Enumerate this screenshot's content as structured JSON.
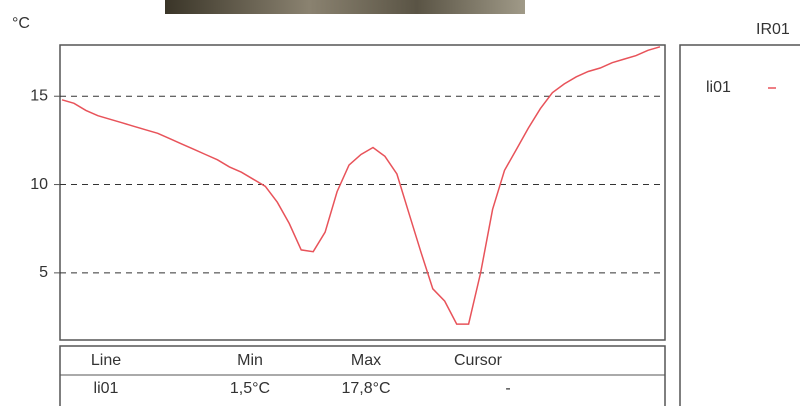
{
  "chart_data": {
    "type": "line",
    "panel_title": "IR01",
    "y_label": "°C",
    "series": [
      {
        "name": "li01",
        "color": "#e8535a",
        "values": [
          14.8,
          14.6,
          14.2,
          13.9,
          13.7,
          13.5,
          13.3,
          13.1,
          12.9,
          12.6,
          12.3,
          12.0,
          11.7,
          11.4,
          11.0,
          10.7,
          10.3,
          9.9,
          9.0,
          7.8,
          6.3,
          6.2,
          7.3,
          9.6,
          11.1,
          11.7,
          12.1,
          11.6,
          10.6,
          8.4,
          6.2,
          4.1,
          3.4,
          2.1,
          2.1,
          5.0,
          8.6,
          10.8,
          12.0,
          13.2,
          14.3,
          15.2,
          15.7,
          16.1,
          16.4,
          16.6,
          16.9,
          17.1,
          17.3,
          17.6,
          17.8
        ]
      }
    ],
    "ylim": [
      1.2,
      17.9
    ],
    "yticks": [
      5,
      10,
      15
    ],
    "grid": true,
    "table": {
      "header": [
        "Line",
        "Min",
        "Max",
        "Cursor"
      ],
      "rows": [
        [
          "li01",
          "1,5°C",
          "17,8°C",
          "-"
        ]
      ]
    }
  }
}
